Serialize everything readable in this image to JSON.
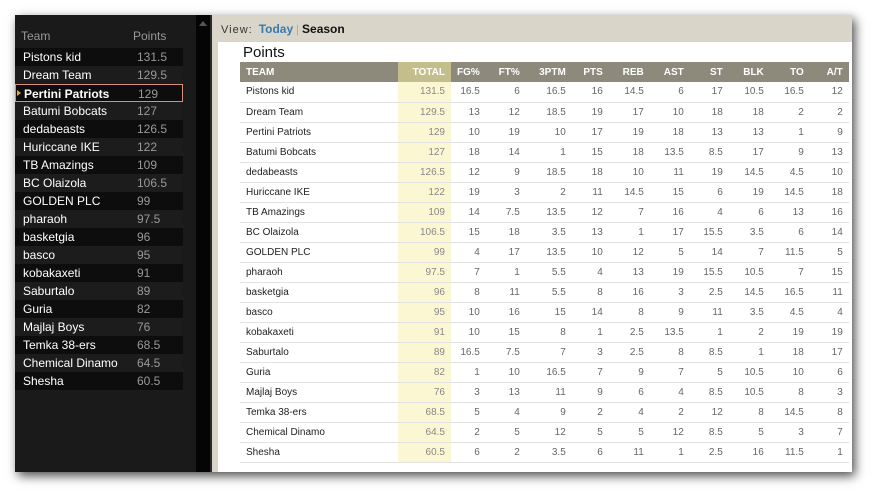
{
  "sidebar": {
    "header": {
      "team": "Team",
      "points": "Points"
    },
    "selected_index": 2,
    "rows": [
      [
        "Pistons kid",
        "131.5"
      ],
      [
        "Dream Team",
        "129.5"
      ],
      [
        "Pertini Patriots",
        "129"
      ],
      [
        "Batumi Bobcats",
        "127"
      ],
      [
        "dedabeasts",
        "126.5"
      ],
      [
        "Huriccane IKE",
        "122"
      ],
      [
        "TB Amazings",
        "109"
      ],
      [
        "BC Olaizola",
        "106.5"
      ],
      [
        "GOLDEN PLC",
        "99"
      ],
      [
        "pharaoh",
        "97.5"
      ],
      [
        "basketgia",
        "96"
      ],
      [
        "basco",
        "95"
      ],
      [
        "kobakaxeti",
        "91"
      ],
      [
        "Saburtalo",
        "89"
      ],
      [
        "Guria",
        "82"
      ],
      [
        "Majlaj Boys",
        "76"
      ],
      [
        "Temka 38-ers",
        "68.5"
      ],
      [
        "Chemical Dinamo",
        "64.5"
      ],
      [
        "Shesha",
        "60.5"
      ]
    ]
  },
  "view": {
    "label": "View:",
    "today": "Today",
    "separator": "|",
    "season": "Season",
    "active": "Today"
  },
  "main": {
    "title": "Points",
    "columns": [
      "TEAM",
      "TOTAL",
      "FG%",
      "FT%",
      "3PTM",
      "PTS",
      "REB",
      "AST",
      "ST",
      "BLK",
      "TO",
      "A/T"
    ],
    "rows": [
      [
        "Pistons kid",
        "131.5",
        "16.5",
        "6",
        "16.5",
        "16",
        "14.5",
        "6",
        "17",
        "10.5",
        "16.5",
        "12"
      ],
      [
        "Dream Team",
        "129.5",
        "13",
        "12",
        "18.5",
        "19",
        "17",
        "10",
        "18",
        "18",
        "2",
        "2"
      ],
      [
        "Pertini Patriots",
        "129",
        "10",
        "19",
        "10",
        "17",
        "19",
        "18",
        "13",
        "13",
        "1",
        "9"
      ],
      [
        "Batumi Bobcats",
        "127",
        "18",
        "14",
        "1",
        "15",
        "18",
        "13.5",
        "8.5",
        "17",
        "9",
        "13"
      ],
      [
        "dedabeasts",
        "126.5",
        "12",
        "9",
        "18.5",
        "18",
        "10",
        "11",
        "19",
        "14.5",
        "4.5",
        "10"
      ],
      [
        "Huriccane IKE",
        "122",
        "19",
        "3",
        "2",
        "11",
        "14.5",
        "15",
        "6",
        "19",
        "14.5",
        "18"
      ],
      [
        "TB Amazings",
        "109",
        "14",
        "7.5",
        "13.5",
        "12",
        "7",
        "16",
        "4",
        "6",
        "13",
        "16"
      ],
      [
        "BC Olaizola",
        "106.5",
        "15",
        "18",
        "3.5",
        "13",
        "1",
        "17",
        "15.5",
        "3.5",
        "6",
        "14"
      ],
      [
        "GOLDEN PLC",
        "99",
        "4",
        "17",
        "13.5",
        "10",
        "12",
        "5",
        "14",
        "7",
        "11.5",
        "5"
      ],
      [
        "pharaoh",
        "97.5",
        "7",
        "1",
        "5.5",
        "4",
        "13",
        "19",
        "15.5",
        "10.5",
        "7",
        "15"
      ],
      [
        "basketgia",
        "96",
        "8",
        "11",
        "5.5",
        "8",
        "16",
        "3",
        "2.5",
        "14.5",
        "16.5",
        "11"
      ],
      [
        "basco",
        "95",
        "10",
        "16",
        "15",
        "14",
        "8",
        "9",
        "11",
        "3.5",
        "4.5",
        "4"
      ],
      [
        "kobakaxeti",
        "91",
        "10",
        "15",
        "8",
        "1",
        "2.5",
        "13.5",
        "1",
        "2",
        "19",
        "19"
      ],
      [
        "Saburtalo",
        "89",
        "16.5",
        "7.5",
        "7",
        "3",
        "2.5",
        "8",
        "8.5",
        "1",
        "18",
        "17"
      ],
      [
        "Guria",
        "82",
        "1",
        "10",
        "16.5",
        "7",
        "9",
        "7",
        "5",
        "10.5",
        "10",
        "6"
      ],
      [
        "Majlaj Boys",
        "76",
        "3",
        "13",
        "11",
        "9",
        "6",
        "4",
        "8.5",
        "10.5",
        "8",
        "3"
      ],
      [
        "Temka 38-ers",
        "68.5",
        "5",
        "4",
        "9",
        "2",
        "4",
        "2",
        "12",
        "8",
        "14.5",
        "8"
      ],
      [
        "Chemical Dinamo",
        "64.5",
        "2",
        "5",
        "12",
        "5",
        "5",
        "12",
        "8.5",
        "5",
        "3",
        "7"
      ],
      [
        "Shesha",
        "60.5",
        "6",
        "2",
        "3.5",
        "6",
        "11",
        "1",
        "2.5",
        "16",
        "11.5",
        "1"
      ]
    ]
  }
}
